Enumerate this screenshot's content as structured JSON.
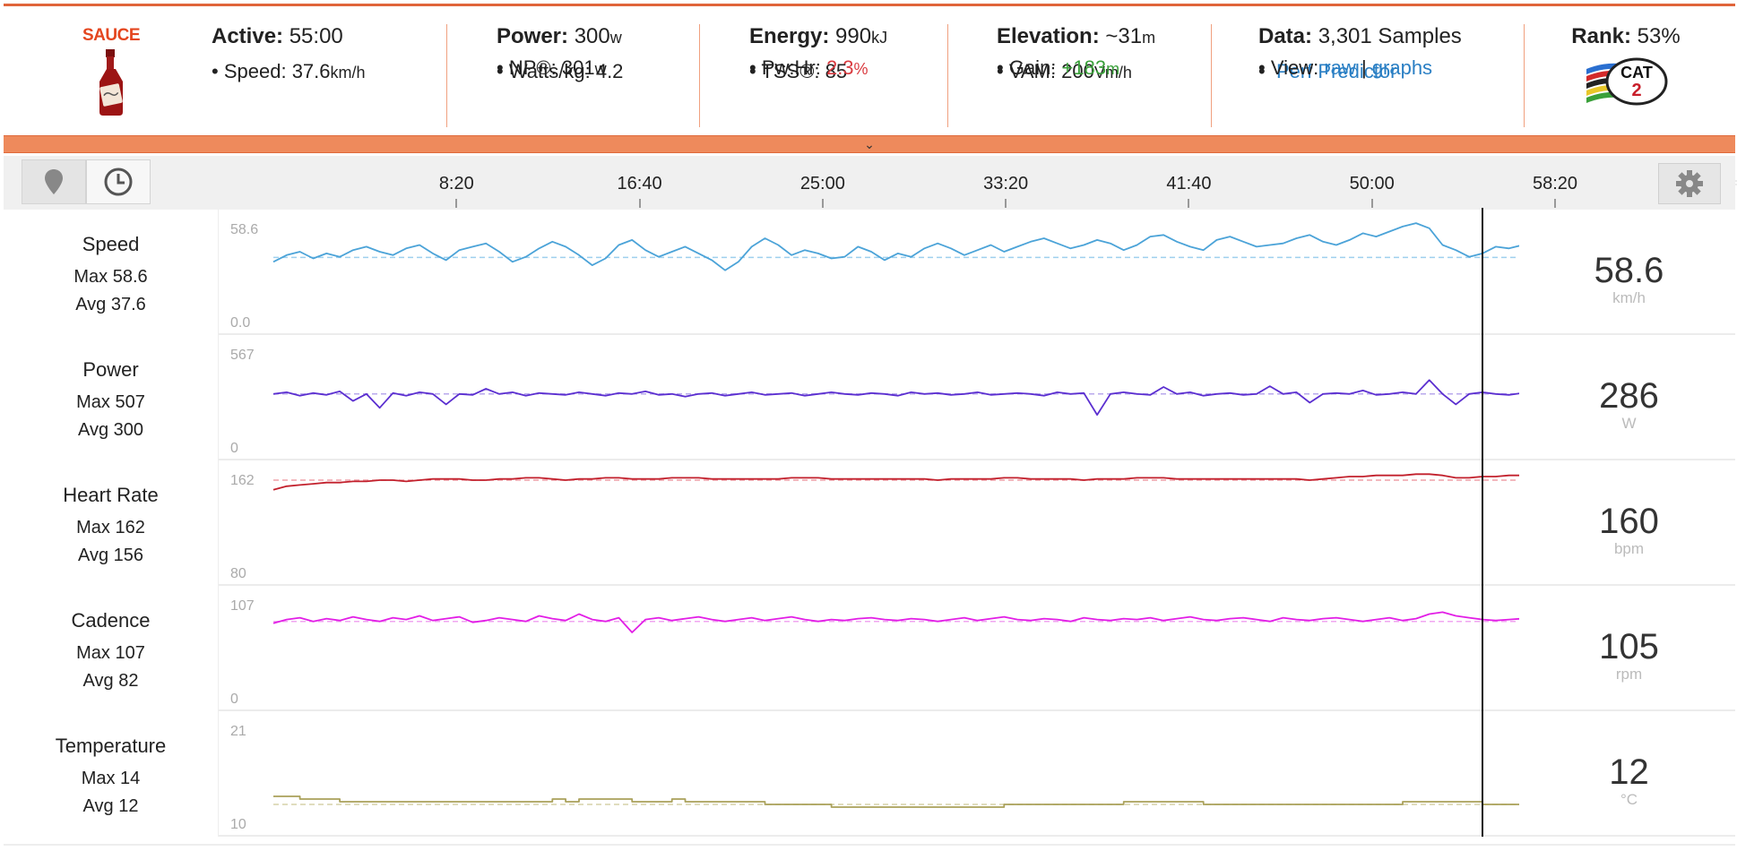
{
  "header": {
    "brand": "SAUCE",
    "active": {
      "label": "Active:",
      "value": "55:00"
    },
    "speed": {
      "label": "Speed:",
      "value": "37.6",
      "unit": "km/h"
    },
    "power": {
      "label": "Power:",
      "value": "300",
      "unit": "w"
    },
    "wkg": {
      "label": "Watts/kg:",
      "value": "4.2"
    },
    "np": {
      "label": "NP®:",
      "value": "301",
      "unit": "w"
    },
    "energy": {
      "label": "Energy:",
      "value": "990",
      "unit": "kJ"
    },
    "tss": {
      "label": "TSS®:",
      "value": "85"
    },
    "pwhr": {
      "label": "Pw:Hr:",
      "value": "2.3",
      "unit": "%"
    },
    "elevation": {
      "label": "Elevation:",
      "value": "~31",
      "unit": "m"
    },
    "vam": {
      "label": "VAM:",
      "value": "200",
      "unit": "Vm/h"
    },
    "gain": {
      "label": "Gain:",
      "value": "+183",
      "unit": "m"
    },
    "data": {
      "label": "Data:",
      "value": "3,301 Samples"
    },
    "perf_predictor": "Perf Predictor",
    "view": {
      "label": "View:",
      "raw": "raw",
      "sep": "|",
      "graphs": "graphs"
    },
    "rank": {
      "label": "Rank:",
      "value": "53%",
      "badge_text": "CAT",
      "badge_num": "2"
    }
  },
  "timeline": {
    "ticks": [
      "8:20",
      "16:40",
      "25:00",
      "33:20",
      "41:40",
      "50:00",
      "58:20"
    ],
    "tick_seconds": [
      500,
      1000,
      1500,
      2000,
      2500,
      3000,
      3500
    ],
    "duration_seconds": 3300
  },
  "cursor_seconds": 3300,
  "rows": [
    {
      "name": "Speed",
      "max_label": "Max 58.6",
      "avg_label": "Avg 37.6",
      "axis_max": "58.6",
      "axis_min": "0.0",
      "current": "58.6",
      "unit": "km/h",
      "color": "#4ba3d8",
      "avg_color": "#9fd0ee"
    },
    {
      "name": "Power",
      "max_label": "Max 507",
      "avg_label": "Avg 300",
      "axis_max": "567",
      "axis_min": "0",
      "current": "286",
      "unit": "W",
      "color": "#5b2fd0",
      "avg_color": "#b8a8ec"
    },
    {
      "name": "Heart Rate",
      "max_label": "Max 162",
      "avg_label": "Avg 156",
      "axis_max": "162",
      "axis_min": "80",
      "current": "160",
      "unit": "bpm",
      "color": "#c2202c",
      "avg_color": "#efa0a8"
    },
    {
      "name": "Cadence",
      "max_label": "Max 107",
      "avg_label": "Avg 82",
      "axis_max": "107",
      "axis_min": "0",
      "current": "105",
      "unit": "rpm",
      "color": "#e21ee6",
      "avg_color": "#f0a6f0"
    },
    {
      "name": "Temperature",
      "max_label": "Max 14",
      "avg_label": "Avg 12",
      "axis_max": "21",
      "axis_min": "10",
      "current": "12",
      "unit": "°C",
      "color": "#aaa15a",
      "avg_color": "#d6d2a8"
    }
  ],
  "chart_data": {
    "type": "line",
    "x_unit": "seconds",
    "x_range": [
      0,
      3300
    ],
    "series": [
      {
        "name": "Speed",
        "min": 0.0,
        "max": 58.6,
        "avg": 37.6,
        "ylim": [
          0.0,
          58.6
        ],
        "unit": "km/h",
        "values": [
          35,
          39,
          41,
          37,
          40,
          38,
          42,
          44,
          41,
          39,
          43,
          45,
          40,
          36,
          42,
          44,
          46,
          41,
          35,
          38,
          43,
          47,
          44,
          39,
          33,
          37,
          45,
          48,
          42,
          38,
          41,
          44,
          40,
          36,
          30,
          35,
          44,
          49,
          45,
          39,
          42,
          40,
          37,
          38,
          44,
          41,
          36,
          40,
          38,
          43,
          46,
          43,
          39,
          42,
          45,
          41,
          44,
          47,
          49,
          46,
          43,
          45,
          48,
          46,
          42,
          45,
          50,
          51,
          47,
          44,
          42,
          48,
          50,
          47,
          44,
          45,
          46,
          49,
          51,
          47,
          45,
          48,
          52,
          50,
          53,
          56,
          58,
          55,
          45,
          42,
          38,
          40,
          44,
          43,
          45,
          46
        ]
      },
      {
        "name": "Power",
        "min": 0,
        "max": 507,
        "avg": 300,
        "ylim": [
          0,
          567
        ],
        "unit": "W",
        "values": [
          300,
          310,
          290,
          305,
          295,
          315,
          260,
          300,
          220,
          305,
          290,
          310,
          300,
          240,
          300,
          295,
          330,
          300,
          310,
          290,
          305,
          300,
          295,
          310,
          300,
          290,
          305,
          300,
          315,
          295,
          300,
          285,
          300,
          305,
          290,
          300,
          310,
          295,
          300,
          305,
          290,
          300,
          310,
          300,
          295,
          305,
          300,
          290,
          310,
          300,
          305,
          295,
          300,
          310,
          295,
          300,
          305,
          300,
          290,
          310,
          300,
          305,
          180,
          300,
          310,
          300,
          295,
          340,
          300,
          310,
          290,
          300,
          305,
          295,
          300,
          345,
          300,
          310,
          250,
          300,
          305,
          300,
          320,
          295,
          300,
          310,
          300,
          380,
          300,
          240,
          300,
          310,
          300,
          295,
          305,
          300
        ]
      },
      {
        "name": "Heart Rate",
        "min": 80,
        "max": 162,
        "avg": 156,
        "ylim": [
          80,
          162
        ],
        "unit": "bpm",
        "values": [
          148,
          151,
          152,
          153,
          154,
          154,
          155,
          155,
          156,
          156,
          155,
          156,
          157,
          157,
          157,
          156,
          156,
          157,
          157,
          158,
          158,
          157,
          156,
          157,
          157,
          158,
          158,
          157,
          157,
          157,
          158,
          158,
          158,
          157,
          157,
          157,
          157,
          157,
          157,
          158,
          158,
          158,
          157,
          157,
          157,
          157,
          157,
          157,
          157,
          157,
          156,
          157,
          157,
          157,
          157,
          158,
          158,
          157,
          157,
          157,
          157,
          156,
          157,
          157,
          157,
          158,
          158,
          158,
          157,
          157,
          157,
          157,
          157,
          157,
          157,
          157,
          157,
          157,
          156,
          157,
          158,
          159,
          159,
          160,
          160,
          160,
          161,
          161,
          160,
          158,
          158,
          159,
          159,
          160,
          160,
          160
        ]
      },
      {
        "name": "Cadence",
        "min": 0,
        "max": 107,
        "avg": 82,
        "ylim": [
          0,
          107
        ],
        "unit": "rpm",
        "values": [
          80,
          84,
          86,
          82,
          85,
          83,
          87,
          84,
          82,
          86,
          84,
          88,
          83,
          85,
          87,
          81,
          83,
          86,
          84,
          82,
          88,
          85,
          83,
          90,
          84,
          82,
          86,
          70,
          84,
          86,
          83,
          85,
          87,
          84,
          82,
          84,
          86,
          83,
          85,
          87,
          84,
          82,
          84,
          83,
          85,
          86,
          84,
          83,
          85,
          84,
          82,
          84,
          86,
          83,
          85,
          87,
          84,
          83,
          85,
          84,
          82,
          86,
          84,
          83,
          85,
          84,
          86,
          83,
          85,
          87,
          84,
          83,
          85,
          86,
          84,
          82,
          86,
          84,
          83,
          85,
          86,
          84,
          82,
          84,
          86,
          83,
          85,
          90,
          92,
          88,
          86,
          84,
          83,
          84,
          85,
          85
        ]
      },
      {
        "name": "Temperature",
        "min": 10,
        "max": 14,
        "avg": 12,
        "ylim": [
          10,
          21
        ],
        "unit": "°C",
        "values": [
          12.9,
          12.9,
          12.6,
          12.6,
          12.6,
          12.3,
          12.3,
          12.3,
          12.3,
          12.3,
          12.3,
          12.3,
          12.3,
          12.3,
          12.3,
          12.3,
          12.3,
          12.3,
          12.3,
          12.3,
          12.3,
          12.6,
          12.3,
          12.6,
          12.6,
          12.6,
          12.6,
          12.3,
          12.3,
          12.3,
          12.6,
          12.3,
          12.3,
          12.3,
          12.3,
          12.3,
          12.3,
          12.0,
          12.0,
          12.0,
          12.0,
          12.0,
          11.7,
          11.7,
          11.7,
          11.7,
          11.7,
          11.7,
          11.7,
          11.7,
          11.7,
          11.7,
          11.7,
          11.7,
          11.7,
          12.0,
          12.0,
          12.0,
          12.0,
          12.0,
          12.0,
          12.0,
          12.0,
          12.0,
          12.3,
          12.3,
          12.3,
          12.3,
          12.3,
          12.3,
          12.0,
          12.0,
          12.0,
          12.0,
          12.0,
          12.0,
          12.0,
          12.0,
          12.0,
          12.0,
          12.0,
          12.0,
          12.0,
          12.0,
          12.0,
          12.3,
          12.3,
          12.3,
          12.3,
          12.3,
          12.3,
          12.0,
          12.0,
          12.0,
          12.0,
          12.0
        ]
      }
    ]
  }
}
